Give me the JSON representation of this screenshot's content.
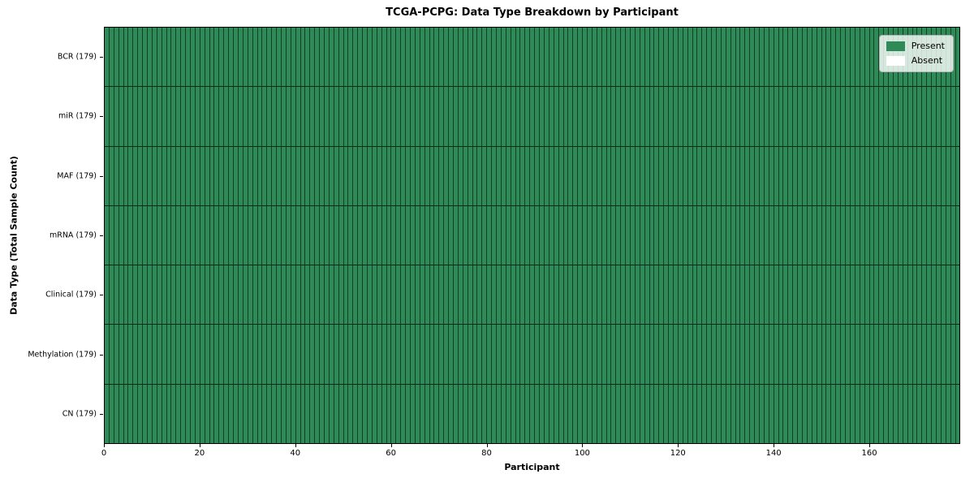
{
  "figure": {
    "title": "TCGA-PCPG: Data Type Breakdown by Participant",
    "x_axis_label": "Participant",
    "y_axis_label": "Data Type (Total Sample Count)"
  },
  "legend": {
    "position": "upper right",
    "items": [
      {
        "label": "Present",
        "color": "#2e8b57"
      },
      {
        "label": "Absent",
        "color": "#ffffff"
      }
    ]
  },
  "chart_data": {
    "type": "heatmap",
    "title": "TCGA-PCPG: Data Type Breakdown by Participant",
    "xlabel": "Participant",
    "ylabel": "Data Type (Total Sample Count)",
    "x_range": [
      0,
      179
    ],
    "x_ticks": [
      0,
      20,
      40,
      60,
      80,
      100,
      120,
      140,
      160
    ],
    "n_participants": 179,
    "rows": [
      {
        "label": "BCR (179)",
        "data_type": "BCR",
        "total_sample_count": 179,
        "present_count": 179,
        "absent_count": 0
      },
      {
        "label": "miR (179)",
        "data_type": "miR",
        "total_sample_count": 179,
        "present_count": 179,
        "absent_count": 0
      },
      {
        "label": "MAF (179)",
        "data_type": "MAF",
        "total_sample_count": 179,
        "present_count": 179,
        "absent_count": 0
      },
      {
        "label": "mRNA (179)",
        "data_type": "mRNA",
        "total_sample_count": 179,
        "present_count": 179,
        "absent_count": 0
      },
      {
        "label": "Clinical (179)",
        "data_type": "Clinical",
        "total_sample_count": 179,
        "present_count": 179,
        "absent_count": 0
      },
      {
        "label": "Methylation (179)",
        "data_type": "Methylation",
        "total_sample_count": 179,
        "present_count": 179,
        "absent_count": 0
      },
      {
        "label": "CN (179)",
        "data_type": "CN",
        "total_sample_count": 179,
        "present_count": 179,
        "absent_count": 0
      }
    ],
    "cell_colors": {
      "present": "#2e8b57",
      "absent": "#ffffff"
    },
    "grid": {
      "column_separator_color": "rgba(0,0,0,0.55)",
      "row_separator_color": "rgba(0,0,0,0.7)"
    }
  }
}
